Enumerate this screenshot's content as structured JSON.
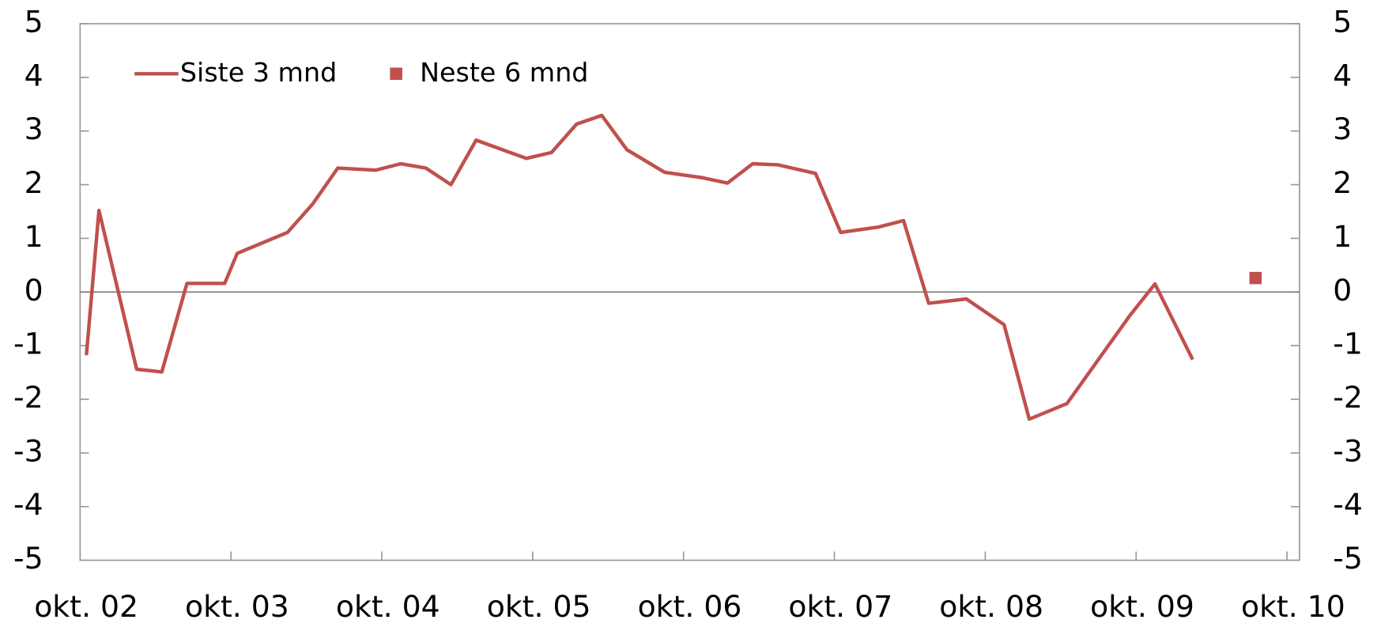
{
  "chart_data": {
    "type": "line",
    "x": [
      0.5,
      1.5,
      4.5,
      6.5,
      8.5,
      11.5,
      12.5,
      16.5,
      18.5,
      20.5,
      23.5,
      25.5,
      27.5,
      29.5,
      31.5,
      35.5,
      37.5,
      39.5,
      41.5,
      43.5,
      46.5,
      49.5,
      51.5,
      53.5,
      55.5,
      58.5,
      60.5,
      63.5,
      65.5,
      67.5,
      70.5,
      73.5,
      75.5,
      78.5,
      83.5,
      85.5,
      88.5
    ],
    "series": [
      {
        "name": "Siste 3 mnd",
        "color": "#c0504d",
        "values": [
          -1.18,
          1.52,
          -1.44,
          -1.49,
          0.16,
          0.16,
          0.72,
          1.11,
          1.64,
          2.31,
          2.27,
          2.39,
          2.31,
          2.0,
          2.83,
          2.49,
          2.6,
          3.13,
          3.29,
          2.65,
          2.23,
          2.13,
          2.03,
          2.39,
          2.37,
          2.21,
          1.11,
          1.21,
          1.33,
          -0.21,
          -0.13,
          -0.61,
          -2.37,
          -2.08,
          -0.44,
          0.15,
          -1.26
        ]
      },
      {
        "name": "Neste 6 mnd",
        "color": "#c0504d",
        "marker": "square",
        "x": [
          93.5
        ],
        "values": [
          0.26
        ]
      }
    ],
    "xlim": [
      0,
      97
    ],
    "xticks": [
      {
        "value": 0,
        "label": "okt. 02"
      },
      {
        "value": 12,
        "label": "okt. 03"
      },
      {
        "value": 24,
        "label": "okt. 04"
      },
      {
        "value": 36,
        "label": "okt. 05"
      },
      {
        "value": 48,
        "label": "okt. 06"
      },
      {
        "value": 60,
        "label": "okt. 07"
      },
      {
        "value": 72,
        "label": "okt. 08"
      },
      {
        "value": 84,
        "label": "okt. 09"
      },
      {
        "value": 96,
        "label": "okt. 10"
      }
    ],
    "ylim": [
      -5,
      5
    ],
    "yticks": [
      -5,
      -4,
      -3,
      -2,
      -1,
      0,
      1,
      2,
      3,
      4,
      5
    ],
    "y2lim": [
      -5,
      5
    ],
    "y2ticks": [
      -5,
      -4,
      -3,
      -2,
      -1,
      0,
      1,
      2,
      3,
      4,
      5
    ],
    "legend": "top-left"
  }
}
